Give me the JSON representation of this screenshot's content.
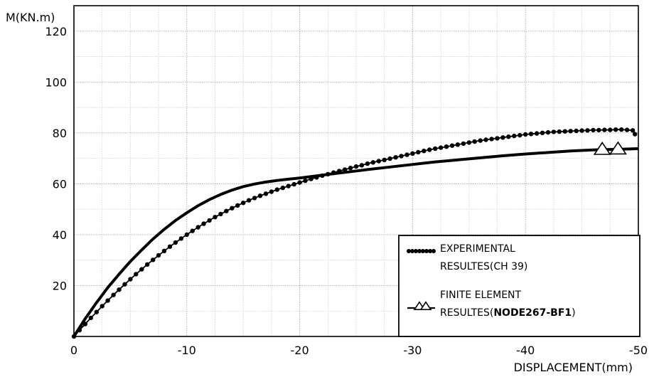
{
  "chart_data": {
    "type": "line",
    "ylabel": "M(KN.m)",
    "xlabel": "DISPLACEMENT(mm)",
    "xlim": [
      0,
      -50
    ],
    "ylim": [
      0,
      130
    ],
    "x_ticks": [
      0,
      -10,
      -20,
      -30,
      -40,
      -50
    ],
    "x_tick_labels": [
      "0",
      "-10",
      "-20",
      "-30",
      "-40",
      "-50"
    ],
    "y_ticks": [
      20,
      40,
      60,
      80,
      100,
      120
    ],
    "y_tick_labels": [
      "20",
      "40",
      "60",
      "80",
      "100",
      "120"
    ],
    "grid": true,
    "legend_position": "bottom-right",
    "series": [
      {
        "name_lines": [
          "EXPERIMENTAL",
          "RESULTES(CH 39)"
        ],
        "marker": "filled-circle",
        "color": "#000000",
        "x": [
          0,
          -0.5,
          -1.0,
          -1.5,
          -2.0,
          -2.5,
          -3.0,
          -3.5,
          -4.0,
          -4.5,
          -5.0,
          -5.5,
          -6.0,
          -6.5,
          -7.0,
          -7.5,
          -8.0,
          -8.5,
          -9.0,
          -9.5,
          -10.0,
          -10.5,
          -11.0,
          -11.5,
          -12.0,
          -12.5,
          -13.0,
          -13.5,
          -14.0,
          -14.5,
          -15.0,
          -15.5,
          -16.0,
          -16.5,
          -17.0,
          -17.5,
          -18.0,
          -18.5,
          -19.0,
          -19.5,
          -20.0,
          -20.5,
          -21.0,
          -21.5,
          -22.0,
          -22.5,
          -23.0,
          -23.5,
          -24.0,
          -24.5,
          -25.0,
          -25.5,
          -26.0,
          -26.5,
          -27.0,
          -27.5,
          -28.0,
          -28.5,
          -29.0,
          -29.5,
          -30.0,
          -30.5,
          -31.0,
          -31.5,
          -32.0,
          -32.5,
          -33.0,
          -33.5,
          -34.0,
          -34.5,
          -35.0,
          -35.5,
          -36.0,
          -36.5,
          -37.0,
          -37.5,
          -38.0,
          -38.5,
          -39.0,
          -39.5,
          -40.0,
          -40.5,
          -41.0,
          -41.5,
          -42.0,
          -42.5,
          -43.0,
          -43.5,
          -44.0,
          -44.5,
          -45.0,
          -45.5,
          -46.0,
          -46.5,
          -47.0,
          -47.5,
          -48.0,
          -48.5,
          -49.0,
          -49.5,
          -49.7
        ],
        "y": [
          0.0,
          2.5,
          4.9,
          7.3,
          9.6,
          11.9,
          14.1,
          16.3,
          18.4,
          20.5,
          22.5,
          24.5,
          26.4,
          28.3,
          30.1,
          31.9,
          33.6,
          35.3,
          36.9,
          38.5,
          40.0,
          41.5,
          42.9,
          44.3,
          45.6,
          46.9,
          48.1,
          49.3,
          50.4,
          51.5,
          52.5,
          53.5,
          54.4,
          55.3,
          56.1,
          56.9,
          57.7,
          58.4,
          59.1,
          59.8,
          60.5,
          61.2,
          61.9,
          62.5,
          63.2,
          63.8,
          64.4,
          65.0,
          65.6,
          66.2,
          66.8,
          67.3,
          67.9,
          68.4,
          68.9,
          69.4,
          69.9,
          70.4,
          70.9,
          71.4,
          71.9,
          72.4,
          72.9,
          73.4,
          73.8,
          74.2,
          74.6,
          75.0,
          75.4,
          75.8,
          76.2,
          76.6,
          77.0,
          77.3,
          77.6,
          77.9,
          78.2,
          78.5,
          78.8,
          79.1,
          79.4,
          79.6,
          79.8,
          80.0,
          80.2,
          80.4,
          80.5,
          80.6,
          80.7,
          80.8,
          80.9,
          81.0,
          81.1,
          81.1,
          81.2,
          81.2,
          81.3,
          81.3,
          81.2,
          81.0,
          79.5
        ]
      },
      {
        "name_lines": [
          "FINITE ELEMENT",
          "RESULTES(",
          "NODE267-BF1",
          ")"
        ],
        "marker": "open-triangle",
        "color": "#000000",
        "x": [
          0,
          -1,
          -2,
          -3,
          -4,
          -5,
          -6,
          -7,
          -8,
          -9,
          -10,
          -11,
          -12,
          -13,
          -14,
          -15,
          -16,
          -17,
          -18,
          -19,
          -20,
          -22,
          -24,
          -26,
          -28,
          -30,
          -32,
          -34,
          -36,
          -38,
          -40,
          -42,
          -44,
          -46,
          -47.5,
          -48.5,
          -50
        ],
        "y": [
          0,
          7.0,
          13.3,
          19.2,
          24.5,
          29.5,
          34.0,
          38.3,
          42.1,
          45.6,
          48.6,
          51.4,
          53.8,
          55.8,
          57.5,
          58.9,
          59.9,
          60.7,
          61.3,
          61.8,
          62.3,
          63.4,
          64.5,
          65.6,
          66.6,
          67.6,
          68.6,
          69.4,
          70.2,
          71.0,
          71.7,
          72.3,
          72.9,
          73.3,
          73.5,
          73.6,
          73.8
        ],
        "marker_points": [
          -46.8,
          -48.2
        ]
      }
    ]
  }
}
